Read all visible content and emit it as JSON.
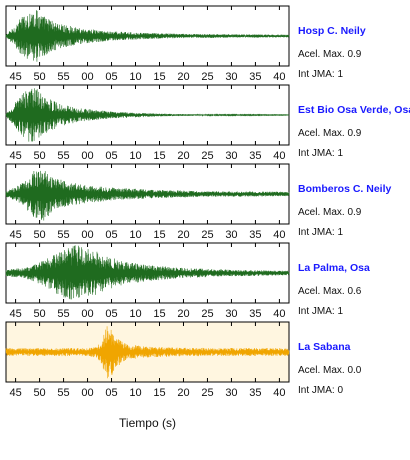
{
  "chart_data": {
    "type": "line",
    "xlabel": "Tiempo (s)",
    "tick_labels": [
      "45",
      "50",
      "55",
      "00",
      "05",
      "10",
      "15",
      "20",
      "25",
      "30",
      "35",
      "40"
    ],
    "x_range": [
      43,
      102
    ],
    "stations": [
      {
        "name": "Hosp C. Neily",
        "peak": "Acel. Max. 0.9",
        "intensity": "Int JMA: 1",
        "color": "#1f6b1f",
        "fill": "#ffffff",
        "envelope": [
          [
            43,
            0.05
          ],
          [
            44.5,
            0.3
          ],
          [
            46,
            0.65
          ],
          [
            47.5,
            0.85
          ],
          [
            49,
            1.0
          ],
          [
            51,
            0.72
          ],
          [
            54,
            0.45
          ],
          [
            58,
            0.3
          ],
          [
            64,
            0.18
          ],
          [
            72,
            0.11
          ],
          [
            82,
            0.07
          ],
          [
            102,
            0.05
          ]
        ]
      },
      {
        "name": "Est Bio Osa Verde, Osa",
        "peak": "Acel. Max. 0.9",
        "intensity": "Int JMA: 1",
        "color": "#1f6b1f",
        "fill": "#ffffff",
        "envelope": [
          [
            43,
            0.05
          ],
          [
            44.5,
            0.35
          ],
          [
            46,
            0.7
          ],
          [
            47.5,
            0.95
          ],
          [
            49,
            1.0
          ],
          [
            51,
            0.7
          ],
          [
            54,
            0.42
          ],
          [
            58,
            0.25
          ],
          [
            65,
            0.12
          ],
          [
            75,
            0.05
          ],
          [
            85,
            0.02
          ],
          [
            102,
            0.01
          ]
        ]
      },
      {
        "name": "Bomberos C. Neily",
        "peak": "Acel. Max. 0.9",
        "intensity": "Int JMA: 1",
        "color": "#1f6b1f",
        "fill": "#ffffff",
        "envelope": [
          [
            43,
            0.1
          ],
          [
            45,
            0.25
          ],
          [
            47,
            0.5
          ],
          [
            49,
            0.9
          ],
          [
            51,
            1.0
          ],
          [
            53,
            0.6
          ],
          [
            56,
            0.42
          ],
          [
            60,
            0.32
          ],
          [
            66,
            0.22
          ],
          [
            74,
            0.15
          ],
          [
            85,
            0.1
          ],
          [
            102,
            0.08
          ]
        ]
      },
      {
        "name": "La Palma, Osa",
        "peak": "Acel. Max. 0.6",
        "intensity": "Int JMA: 1",
        "color": "#1f6b1f",
        "fill": "#ffffff",
        "envelope": [
          [
            43,
            0.12
          ],
          [
            47,
            0.2
          ],
          [
            50,
            0.4
          ],
          [
            53,
            0.7
          ],
          [
            56,
            0.95
          ],
          [
            58,
            1.0
          ],
          [
            61,
            0.85
          ],
          [
            64,
            0.6
          ],
          [
            68,
            0.4
          ],
          [
            73,
            0.28
          ],
          [
            80,
            0.18
          ],
          [
            90,
            0.12
          ],
          [
            102,
            0.08
          ]
        ]
      },
      {
        "name": "La Sabana",
        "peak": "Acel. Max. 0.0",
        "intensity": "Int JMA: 0",
        "color": "#f0a500",
        "fill": "#fff6e0",
        "envelope": [
          [
            43,
            0.14
          ],
          [
            60,
            0.15
          ],
          [
            62,
            0.2
          ],
          [
            63,
            0.45
          ],
          [
            64,
            1.0
          ],
          [
            65,
            0.9
          ],
          [
            66,
            0.55
          ],
          [
            68,
            0.3
          ],
          [
            72,
            0.2
          ],
          [
            80,
            0.15
          ],
          [
            102,
            0.14
          ]
        ]
      }
    ]
  }
}
